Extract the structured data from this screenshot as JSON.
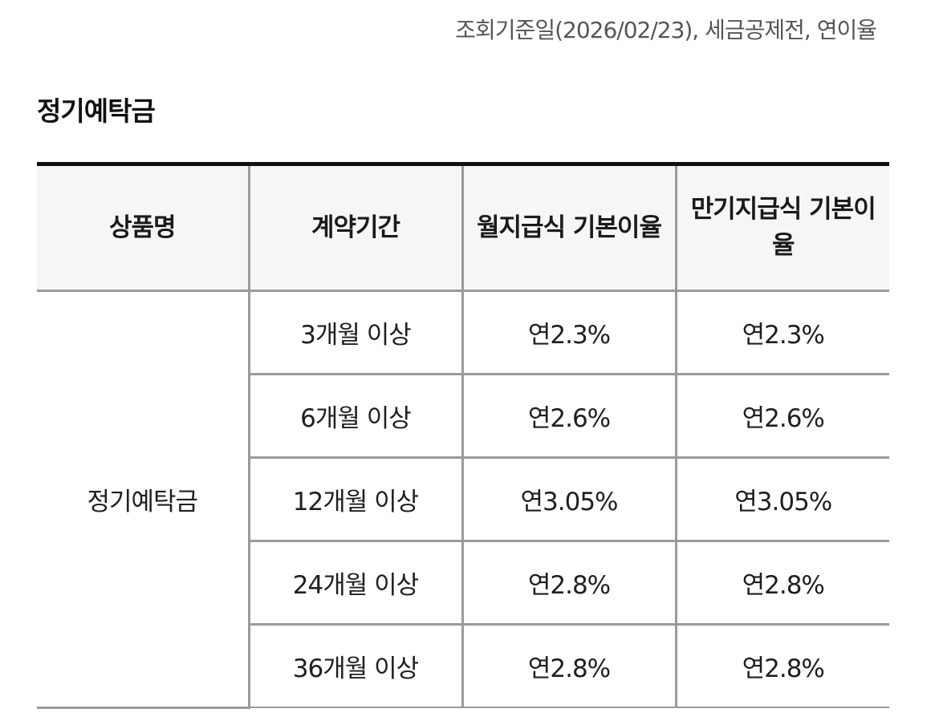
{
  "reference_note": "조회기준일(2026/02/23), 세금공제전, 연이율",
  "section_title": "정기예탁금",
  "table": {
    "headers": [
      "상품명",
      "계약기간",
      "월지급식 기본이율",
      "만기지급식 기본이율"
    ],
    "product_name": "정기예탁금",
    "rows": [
      {
        "period": "3개월 이상",
        "monthly_rate": "연2.3%",
        "maturity_rate": "연2.3%"
      },
      {
        "period": "6개월 이상",
        "monthly_rate": "연2.6%",
        "maturity_rate": "연2.6%"
      },
      {
        "period": "12개월 이상",
        "monthly_rate": "연3.05%",
        "maturity_rate": "연3.05%"
      },
      {
        "period": "24개월 이상",
        "monthly_rate": "연2.8%",
        "maturity_rate": "연2.8%"
      },
      {
        "period": "36개월 이상",
        "monthly_rate": "연2.8%",
        "maturity_rate": "연2.8%"
      }
    ]
  }
}
